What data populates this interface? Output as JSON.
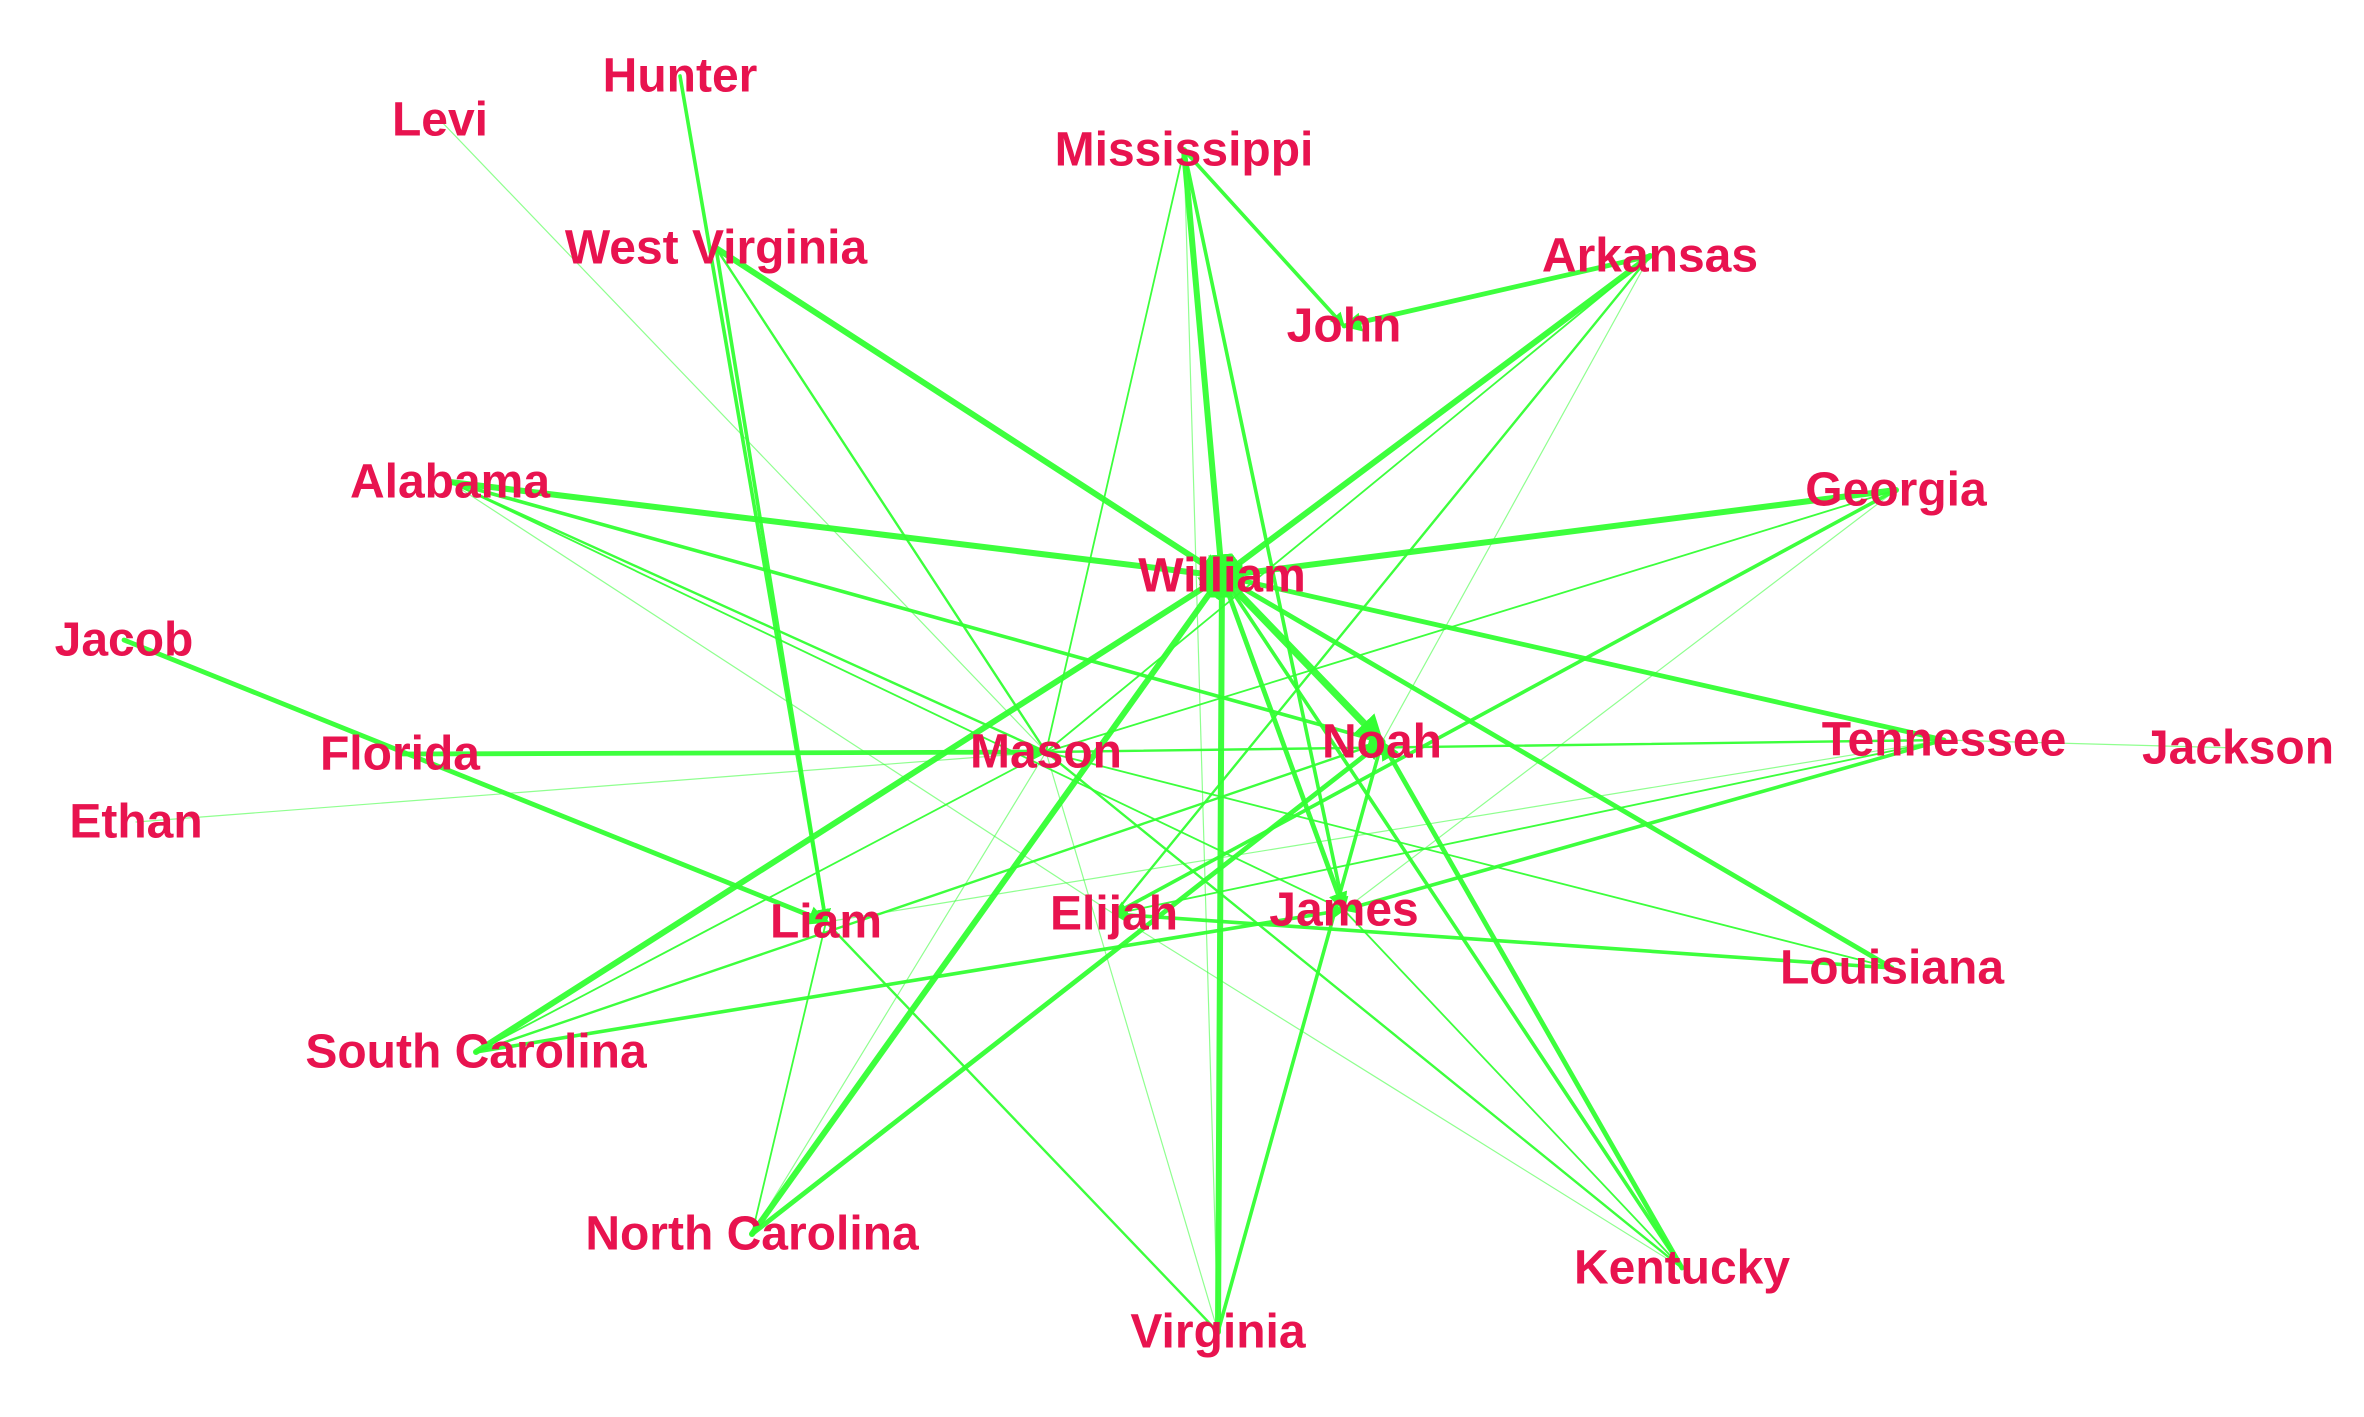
{
  "graph": {
    "node_color": "#e8134f",
    "edge_color": "#33ff33",
    "nodes": [
      {
        "id": "Hunter",
        "label": "Hunter"
      },
      {
        "id": "Levi",
        "label": "Levi"
      },
      {
        "id": "Mississippi",
        "label": "Mississippi"
      },
      {
        "id": "West Virginia",
        "label": "West Virginia"
      },
      {
        "id": "Arkansas",
        "label": "Arkansas"
      },
      {
        "id": "John",
        "label": "John"
      },
      {
        "id": "Alabama",
        "label": "Alabama"
      },
      {
        "id": "Georgia",
        "label": "Georgia"
      },
      {
        "id": "William",
        "label": "William"
      },
      {
        "id": "Jacob",
        "label": "Jacob"
      },
      {
        "id": "Florida",
        "label": "Florida"
      },
      {
        "id": "Mason",
        "label": "Mason"
      },
      {
        "id": "Noah",
        "label": "Noah"
      },
      {
        "id": "Tennessee",
        "label": "Tennessee"
      },
      {
        "id": "Jackson",
        "label": "Jackson"
      },
      {
        "id": "Ethan",
        "label": "Ethan"
      },
      {
        "id": "Liam",
        "label": "Liam"
      },
      {
        "id": "Elijah",
        "label": "Elijah"
      },
      {
        "id": "James",
        "label": "James"
      },
      {
        "id": "Louisiana",
        "label": "Louisiana"
      },
      {
        "id": "South Carolina",
        "label": "South Carolina"
      },
      {
        "id": "North Carolina",
        "label": "North Carolina"
      },
      {
        "id": "Kentucky",
        "label": "Kentucky"
      },
      {
        "id": "Virginia",
        "label": "Virginia"
      }
    ],
    "edges": [
      {
        "source": "Hunter",
        "target": "Liam",
        "weight": 3
      },
      {
        "source": "Levi",
        "target": "Mason",
        "weight": 1
      },
      {
        "source": "Mississippi",
        "target": "William",
        "weight": 5
      },
      {
        "source": "Mississippi",
        "target": "John",
        "weight": 3
      },
      {
        "source": "Mississippi",
        "target": "James",
        "weight": 3
      },
      {
        "source": "Mississippi",
        "target": "Mason",
        "weight": 1.5
      },
      {
        "source": "Mississippi",
        "target": "Virginia",
        "weight": 1
      },
      {
        "source": "Arkansas",
        "target": "John",
        "weight": 4
      },
      {
        "source": "Arkansas",
        "target": "William",
        "weight": 5
      },
      {
        "source": "Arkansas",
        "target": "Mason",
        "weight": 1.5
      },
      {
        "source": "Arkansas",
        "target": "Elijah",
        "weight": 2
      },
      {
        "source": "Arkansas",
        "target": "Noah",
        "weight": 1
      },
      {
        "source": "West Virginia",
        "target": "William",
        "weight": 5
      },
      {
        "source": "West Virginia",
        "target": "Mason",
        "weight": 2
      },
      {
        "source": "West Virginia",
        "target": "Liam",
        "weight": 3
      },
      {
        "source": "Alabama",
        "target": "William",
        "weight": 5
      },
      {
        "source": "Alabama",
        "target": "Noah",
        "weight": 3
      },
      {
        "source": "Alabama",
        "target": "Mason",
        "weight": 2
      },
      {
        "source": "Alabama",
        "target": "James",
        "weight": 1.5
      },
      {
        "source": "Alabama",
        "target": "Elijah",
        "weight": 1
      },
      {
        "source": "Georgia",
        "target": "William",
        "weight": 5
      },
      {
        "source": "Georgia",
        "target": "Elijah",
        "weight": 3
      },
      {
        "source": "Georgia",
        "target": "Mason",
        "weight": 1.5
      },
      {
        "source": "Georgia",
        "target": "James",
        "weight": 1
      },
      {
        "source": "Jacob",
        "target": "Liam",
        "weight": 4
      },
      {
        "source": "Ethan",
        "target": "Mason",
        "weight": 1
      },
      {
        "source": "Florida",
        "target": "Mason",
        "weight": 4
      },
      {
        "source": "Tennessee",
        "target": "William",
        "weight": 4
      },
      {
        "source": "Tennessee",
        "target": "Mason",
        "weight": 2
      },
      {
        "source": "Tennessee",
        "target": "James",
        "weight": 3
      },
      {
        "source": "Tennessee",
        "target": "Elijah",
        "weight": 1.5
      },
      {
        "source": "Tennessee",
        "target": "Liam",
        "weight": 1
      },
      {
        "source": "Jackson",
        "target": "Tennessee",
        "weight": 1
      },
      {
        "source": "William",
        "target": "Noah",
        "weight": 6
      },
      {
        "source": "William",
        "target": "James",
        "weight": 4
      },
      {
        "source": "Louisiana",
        "target": "William",
        "weight": 4
      },
      {
        "source": "Louisiana",
        "target": "Elijah",
        "weight": 3
      },
      {
        "source": "Louisiana",
        "target": "Mason",
        "weight": 1.5
      },
      {
        "source": "South Carolina",
        "target": "William",
        "weight": 5
      },
      {
        "source": "South Carolina",
        "target": "Noah",
        "weight": 2
      },
      {
        "source": "South Carolina",
        "target": "James",
        "weight": 3
      },
      {
        "source": "South Carolina",
        "target": "Mason",
        "weight": 1.5
      },
      {
        "source": "North Carolina",
        "target": "William",
        "weight": 5
      },
      {
        "source": "North Carolina",
        "target": "Noah",
        "weight": 4
      },
      {
        "source": "North Carolina",
        "target": "Liam",
        "weight": 1.5
      },
      {
        "source": "North Carolina",
        "target": "Mason",
        "weight": 1
      },
      {
        "source": "Virginia",
        "target": "William",
        "weight": 5
      },
      {
        "source": "Virginia",
        "target": "Noah",
        "weight": 3
      },
      {
        "source": "Virginia",
        "target": "Liam",
        "weight": 2
      },
      {
        "source": "Virginia",
        "target": "Mason",
        "weight": 1
      },
      {
        "source": "Kentucky",
        "target": "Noah",
        "weight": 4
      },
      {
        "source": "Kentucky",
        "target": "William",
        "weight": 3
      },
      {
        "source": "Kentucky",
        "target": "Mason",
        "weight": 2
      },
      {
        "source": "Kentucky",
        "target": "James",
        "weight": 1.5
      },
      {
        "source": "Kentucky",
        "target": "Elijah",
        "weight": 1
      }
    ]
  }
}
